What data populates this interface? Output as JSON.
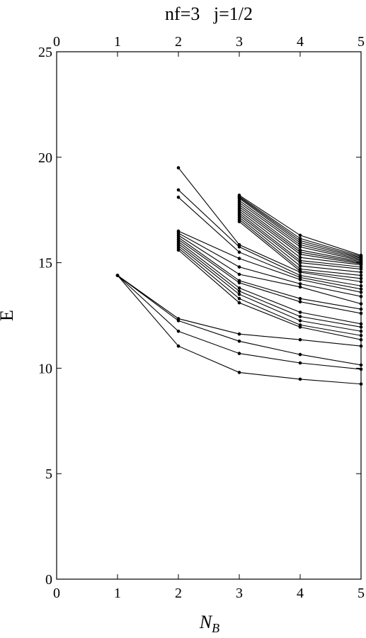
{
  "chart_data": {
    "type": "line",
    "title": "nf=3   j=1/2",
    "xlabel": "N",
    "xlabel_sub": "B",
    "ylabel": "E",
    "xlim": [
      0,
      5
    ],
    "ylim": [
      0,
      25
    ],
    "x_ticks": [
      0,
      1,
      2,
      3,
      4,
      5
    ],
    "y_ticks": [
      0,
      5,
      10,
      15,
      20,
      25
    ],
    "x_tick_labels": [
      "0",
      "1",
      "2",
      "3",
      "4",
      "5"
    ],
    "y_tick_labels": [
      "0",
      "5",
      "10",
      "15",
      "20",
      "25"
    ],
    "top_ticks_labeled": true,
    "grid": false,
    "legend": "none",
    "line_color": "#000000",
    "marker": "dot",
    "series": [
      {
        "x": [
          1,
          2,
          3,
          4,
          5
        ],
        "y": [
          14.4,
          11.05,
          9.8,
          9.48,
          9.25
        ]
      },
      {
        "x": [
          1,
          2,
          3,
          4,
          5
        ],
        "y": [
          14.4,
          11.75,
          10.7,
          10.25,
          9.95
        ]
      },
      {
        "x": [
          1,
          2,
          3,
          4,
          5
        ],
        "y": [
          14.4,
          12.25,
          11.28,
          10.65,
          10.15
        ]
      },
      {
        "x": [
          1,
          2,
          3,
          4,
          5
        ],
        "y": [
          14.4,
          12.35,
          11.62,
          11.35,
          11.05
        ]
      },
      {
        "x": [
          2,
          3,
          4,
          5
        ],
        "y": [
          15.6,
          13.1,
          11.95,
          11.35
        ]
      },
      {
        "x": [
          2,
          3,
          4,
          5
        ],
        "y": [
          15.7,
          13.3,
          12.05,
          11.55
        ]
      },
      {
        "x": [
          2,
          3,
          4,
          5
        ],
        "y": [
          15.8,
          13.5,
          12.25,
          11.75
        ]
      },
      {
        "x": [
          2,
          3,
          4,
          5
        ],
        "y": [
          15.9,
          13.65,
          12.45,
          11.95
        ]
      },
      {
        "x": [
          2,
          3,
          4,
          5
        ],
        "y": [
          16.0,
          13.8,
          12.65,
          12.1
        ]
      },
      {
        "x": [
          2,
          3,
          4,
          5
        ],
        "y": [
          16.1,
          14.05,
          13.15,
          12.6
        ]
      },
      {
        "x": [
          2,
          3,
          4,
          5
        ],
        "y": [
          16.2,
          14.15,
          13.3,
          12.8
        ]
      },
      {
        "x": [
          2,
          3,
          4,
          5
        ],
        "y": [
          16.3,
          14.45,
          13.85,
          13.05
        ]
      },
      {
        "x": [
          2,
          3,
          4,
          5
        ],
        "y": [
          16.4,
          14.8,
          14.0,
          13.4
        ]
      },
      {
        "x": [
          2,
          3,
          4,
          5
        ],
        "y": [
          16.5,
          15.2,
          14.2,
          13.6
        ]
      },
      {
        "x": [
          2,
          3,
          4,
          5
        ],
        "y": [
          18.1,
          15.5,
          14.3,
          13.75
        ]
      },
      {
        "x": [
          2,
          3,
          4,
          5
        ],
        "y": [
          18.45,
          15.75,
          14.4,
          13.9
        ]
      },
      {
        "x": [
          2,
          3,
          4,
          5
        ],
        "y": [
          19.5,
          15.85,
          14.55,
          14.1
        ]
      },
      {
        "x": [
          3,
          4,
          5
        ],
        "y": [
          16.95,
          14.6,
          14.25
        ]
      },
      {
        "x": [
          3,
          4,
          5
        ],
        "y": [
          17.05,
          14.7,
          14.4
        ]
      },
      {
        "x": [
          3,
          4,
          5
        ],
        "y": [
          17.15,
          14.85,
          14.55
        ]
      },
      {
        "x": [
          3,
          4,
          5
        ],
        "y": [
          17.25,
          15.0,
          14.7
        ]
      },
      {
        "x": [
          3,
          4,
          5
        ],
        "y": [
          17.35,
          15.1,
          14.8
        ]
      },
      {
        "x": [
          3,
          4,
          5
        ],
        "y": [
          17.45,
          15.25,
          14.9
        ]
      },
      {
        "x": [
          3,
          4,
          5
        ],
        "y": [
          17.55,
          15.4,
          14.95
        ]
      },
      {
        "x": [
          3,
          4,
          5
        ],
        "y": [
          17.65,
          15.5,
          15.0
        ]
      },
      {
        "x": [
          3,
          4,
          5
        ],
        "y": [
          17.75,
          15.6,
          15.05
        ]
      },
      {
        "x": [
          3,
          4,
          5
        ],
        "y": [
          17.85,
          15.75,
          15.1
        ]
      },
      {
        "x": [
          3,
          4,
          5
        ],
        "y": [
          17.95,
          15.85,
          15.15
        ]
      },
      {
        "x": [
          3,
          4,
          5
        ],
        "y": [
          18.05,
          15.95,
          15.2
        ]
      },
      {
        "x": [
          3,
          4,
          5
        ],
        "y": [
          18.1,
          16.05,
          15.25
        ]
      },
      {
        "x": [
          3,
          4,
          5
        ],
        "y": [
          18.15,
          16.15,
          15.3
        ]
      },
      {
        "x": [
          3,
          4,
          5
        ],
        "y": [
          18.2,
          16.3,
          15.35
        ]
      }
    ]
  }
}
